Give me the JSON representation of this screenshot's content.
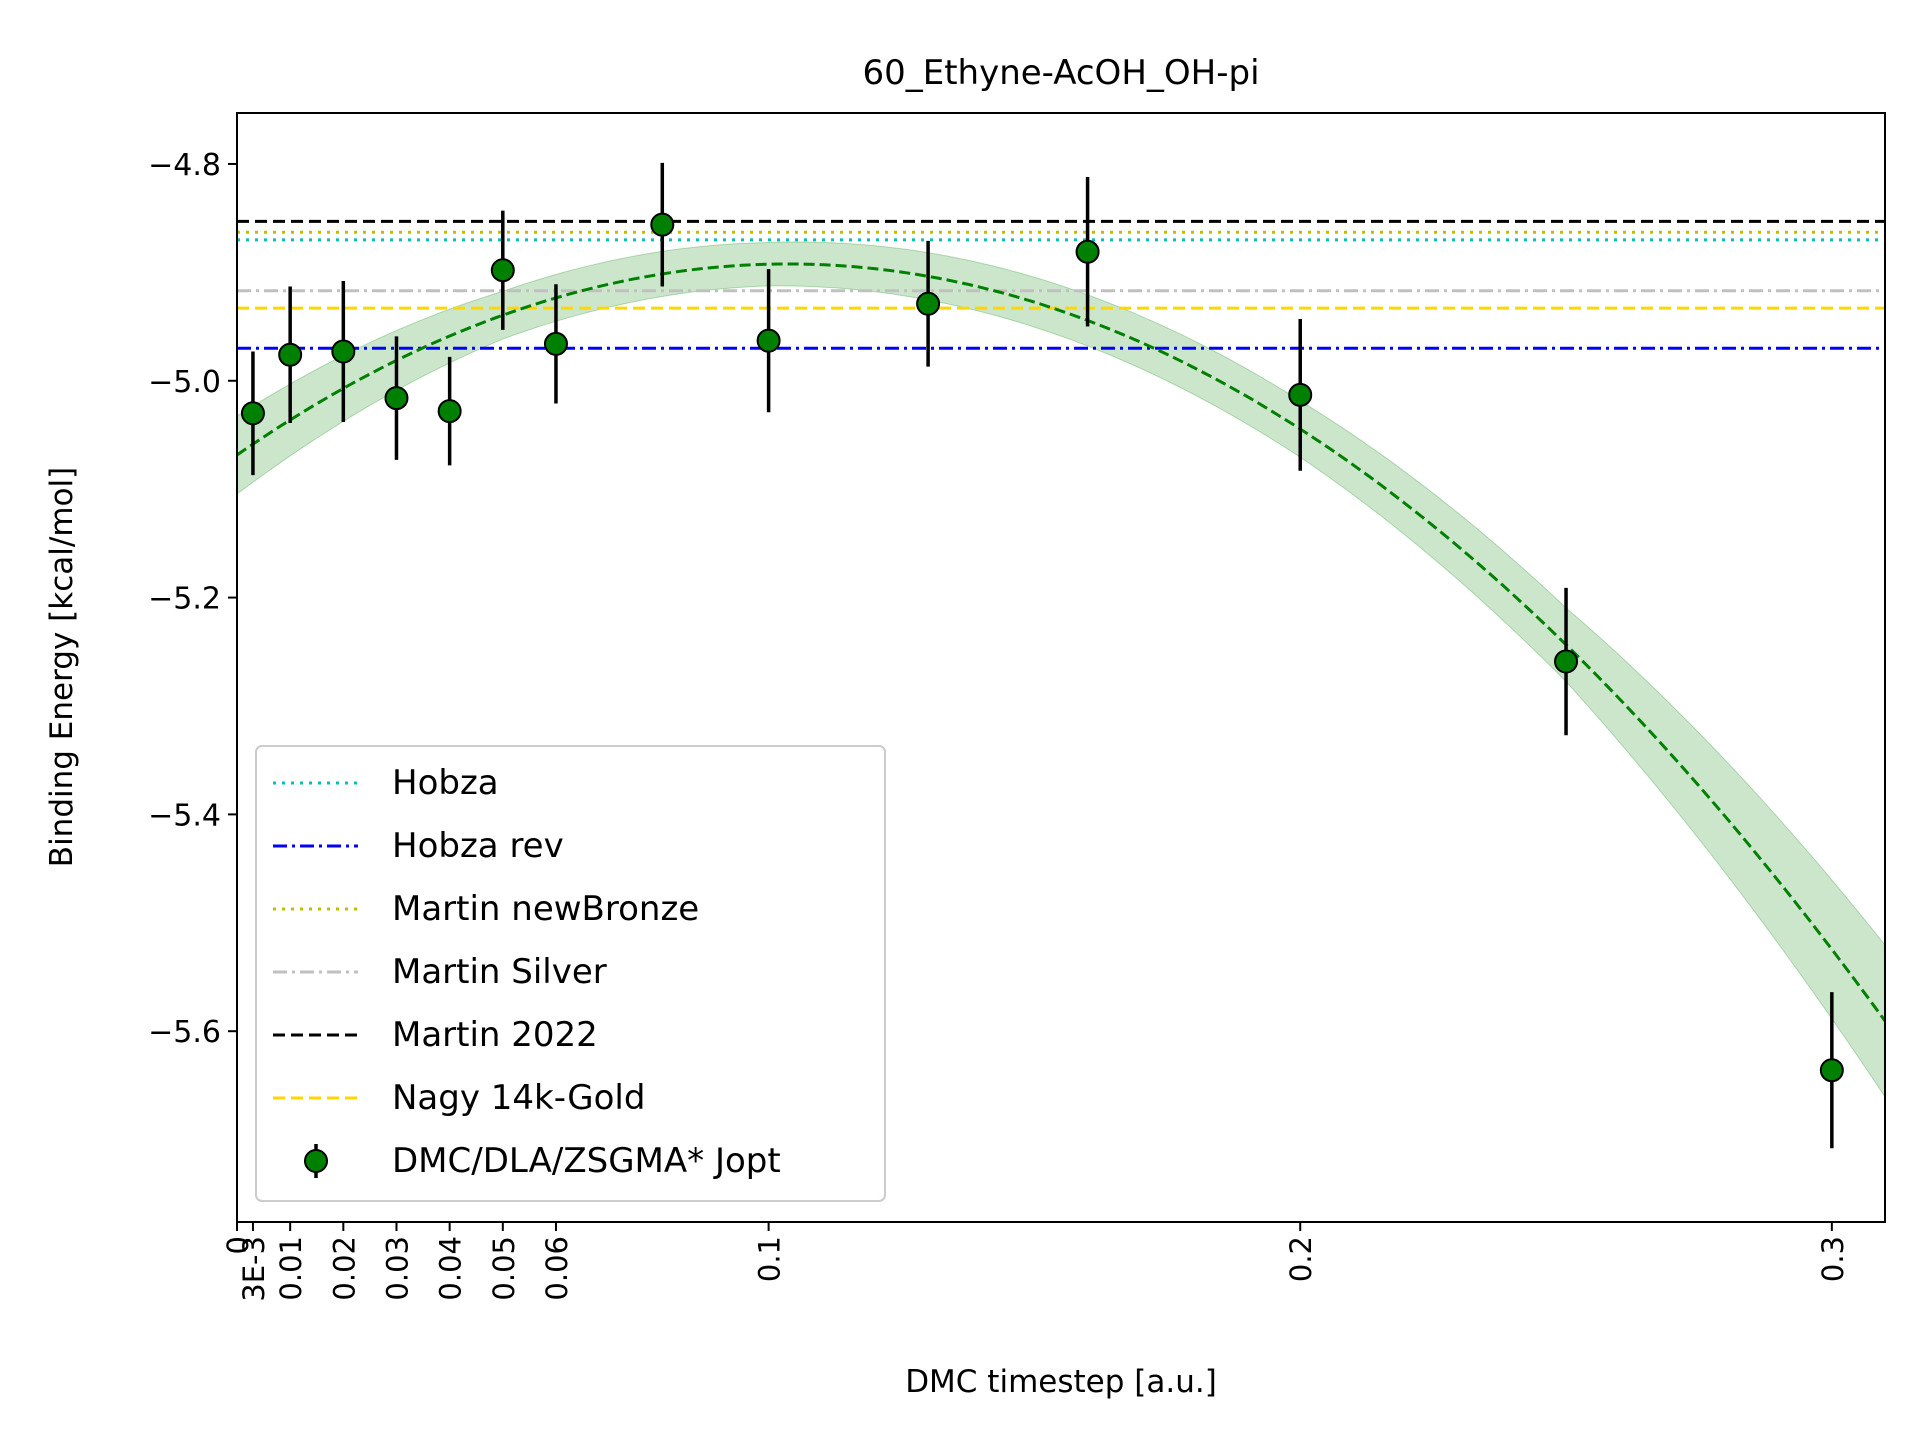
{
  "chart_data": {
    "type": "scatter",
    "title": "60_Ethyne-AcOH_OH-pi",
    "xlabel": "DMC timestep [a.u.]",
    "ylabel": "Binding Energy [kcal/mol]",
    "xlim": [
      0,
      0.31
    ],
    "ylim": [
      -5.776,
      -4.753
    ],
    "grid": false,
    "legend_position": "lower-left",
    "x_ticks": [
      {
        "value": 0,
        "label": "0"
      },
      {
        "value": 0.003,
        "label": "3E-3"
      },
      {
        "value": 0.01,
        "label": "0.01"
      },
      {
        "value": 0.02,
        "label": "0.02"
      },
      {
        "value": 0.03,
        "label": "0.03"
      },
      {
        "value": 0.04,
        "label": "0.04"
      },
      {
        "value": 0.05,
        "label": "0.05"
      },
      {
        "value": 0.06,
        "label": "0.06"
      },
      {
        "value": 0.1,
        "label": "0.1"
      },
      {
        "value": 0.2,
        "label": "0.2"
      },
      {
        "value": 0.3,
        "label": "0.3"
      }
    ],
    "y_ticks": [
      {
        "value": -4.8,
        "label": "−4.8"
      },
      {
        "value": -5.0,
        "label": "−5.0"
      },
      {
        "value": -5.2,
        "label": "−5.2"
      },
      {
        "value": -5.4,
        "label": "−5.4"
      },
      {
        "value": -5.6,
        "label": "−5.6"
      }
    ],
    "reference_lines": [
      {
        "name": "Hobza",
        "value": -4.87,
        "color": "#00bfbf",
        "style": "dotted"
      },
      {
        "name": "Hobza rev",
        "value": -4.97,
        "color": "#0000ff",
        "style": "dashdot"
      },
      {
        "name": "Martin newBronze",
        "value": -4.863,
        "color": "#bfbf00",
        "style": "dotted"
      },
      {
        "name": "Martin Silver",
        "value": -4.917,
        "color": "#c0c0c0",
        "style": "dashdot"
      },
      {
        "name": "Martin 2022",
        "value": -4.853,
        "color": "#000000",
        "style": "dashed"
      },
      {
        "name": "Nagy 14k-Gold",
        "value": -4.933,
        "color": "#ffd700",
        "style": "dashed"
      }
    ],
    "series": [
      {
        "name": "DMC/DLA/ZSGMA* Jopt",
        "color": "#008000",
        "points": [
          {
            "x": 0.003,
            "y": -5.03,
            "err": 0.057
          },
          {
            "x": 0.01,
            "y": -4.976,
            "err": 0.063
          },
          {
            "x": 0.02,
            "y": -4.973,
            "err": 0.065
          },
          {
            "x": 0.03,
            "y": -5.016,
            "err": 0.057
          },
          {
            "x": 0.04,
            "y": -5.028,
            "err": 0.05
          },
          {
            "x": 0.05,
            "y": -4.898,
            "err": 0.055
          },
          {
            "x": 0.06,
            "y": -4.966,
            "err": 0.055
          },
          {
            "x": 0.08,
            "y": -4.856,
            "err": 0.057
          },
          {
            "x": 0.1,
            "y": -4.963,
            "err": 0.066
          },
          {
            "x": 0.13,
            "y": -4.929,
            "err": 0.058
          },
          {
            "x": 0.16,
            "y": -4.881,
            "err": 0.069
          },
          {
            "x": 0.2,
            "y": -5.013,
            "err": 0.07
          },
          {
            "x": 0.25,
            "y": -5.259,
            "err": 0.068
          },
          {
            "x": 0.3,
            "y": -5.636,
            "err": 0.072
          }
        ]
      }
    ],
    "fit": {
      "color": "#008000",
      "band_color": "#008000",
      "coefficients": [
        -5.0685,
        3.4,
        -16.4
      ],
      "band": [
        {
          "x": 0,
          "half_width": 0.036
        },
        {
          "x": 0.05,
          "half_width": 0.022
        },
        {
          "x": 0.1,
          "half_width": 0.02
        },
        {
          "x": 0.2,
          "half_width": 0.026
        },
        {
          "x": 0.25,
          "half_width": 0.034
        },
        {
          "x": 0.31,
          "half_width": 0.07
        }
      ]
    }
  }
}
